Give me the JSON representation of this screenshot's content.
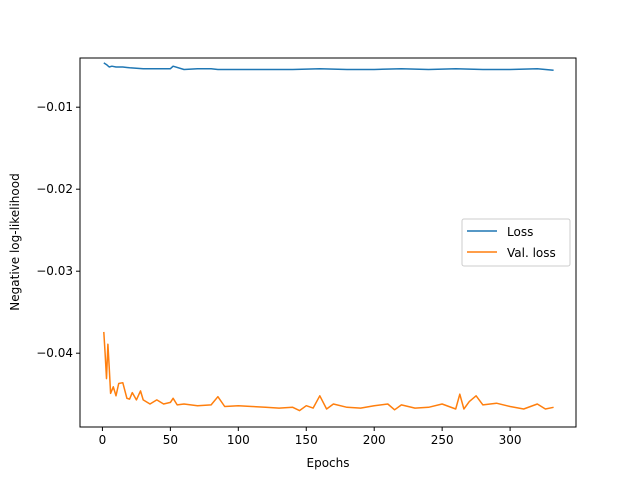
{
  "chart_data": {
    "type": "line",
    "title": "",
    "xlabel": "Epochs",
    "ylabel": "Negative log-likelihood",
    "xlim": [
      -16.5,
      348.5
    ],
    "ylim": [
      -0.049,
      -0.004
    ],
    "xticks": [
      0,
      50,
      100,
      150,
      200,
      250,
      300
    ],
    "yticks": [
      -0.01,
      -0.02,
      -0.03,
      -0.04
    ],
    "xtick_labels": [
      "0",
      "50",
      "100",
      "150",
      "200",
      "250",
      "300"
    ],
    "ytick_labels": [
      "−0.01",
      "−0.02",
      "−0.03",
      "−0.04"
    ],
    "grid": false,
    "legend": "center-right",
    "series": [
      {
        "name": "Loss",
        "color": "#1f77b4",
        "x": [
          1,
          3,
          5,
          7,
          10,
          15,
          20,
          30,
          40,
          50,
          52,
          60,
          70,
          80,
          85,
          100,
          120,
          140,
          160,
          180,
          200,
          220,
          240,
          260,
          280,
          300,
          320,
          332
        ],
        "y": [
          -0.0046,
          -0.0048,
          -0.0051,
          -0.005,
          -0.0051,
          -0.0051,
          -0.0052,
          -0.0053,
          -0.0053,
          -0.0053,
          -0.005,
          -0.0054,
          -0.0053,
          -0.0053,
          -0.0054,
          -0.0054,
          -0.0054,
          -0.0054,
          -0.0053,
          -0.0054,
          -0.0054,
          -0.0053,
          -0.0054,
          -0.0053,
          -0.0054,
          -0.0054,
          -0.0053,
          -0.0055
        ]
      },
      {
        "name": "Val. loss",
        "color": "#ff7f0e",
        "x": [
          1,
          2,
          3,
          4,
          5,
          6,
          8,
          10,
          12,
          15,
          18,
          20,
          22,
          25,
          28,
          30,
          35,
          40,
          45,
          50,
          52,
          55,
          60,
          70,
          80,
          85,
          90,
          100,
          110,
          120,
          130,
          140,
          145,
          150,
          155,
          160,
          165,
          170,
          180,
          190,
          200,
          210,
          215,
          220,
          230,
          240,
          250,
          260,
          263,
          266,
          270,
          275,
          280,
          290,
          300,
          310,
          320,
          326,
          332
        ],
        "y": [
          -0.0374,
          -0.04,
          -0.0431,
          -0.0389,
          -0.0417,
          -0.0449,
          -0.0441,
          -0.0452,
          -0.0437,
          -0.0436,
          -0.0455,
          -0.0456,
          -0.0448,
          -0.0457,
          -0.0446,
          -0.0457,
          -0.0462,
          -0.0457,
          -0.0462,
          -0.046,
          -0.0455,
          -0.0463,
          -0.0462,
          -0.0464,
          -0.0463,
          -0.0453,
          -0.0465,
          -0.0464,
          -0.0465,
          -0.0466,
          -0.0467,
          -0.0466,
          -0.047,
          -0.0464,
          -0.0467,
          -0.0452,
          -0.0468,
          -0.0462,
          -0.0466,
          -0.0467,
          -0.0464,
          -0.0462,
          -0.0469,
          -0.0463,
          -0.0467,
          -0.0466,
          -0.0462,
          -0.0468,
          -0.045,
          -0.0468,
          -0.0459,
          -0.0452,
          -0.0463,
          -0.0461,
          -0.0465,
          -0.0468,
          -0.0462,
          -0.0468,
          -0.0466
        ]
      }
    ]
  }
}
